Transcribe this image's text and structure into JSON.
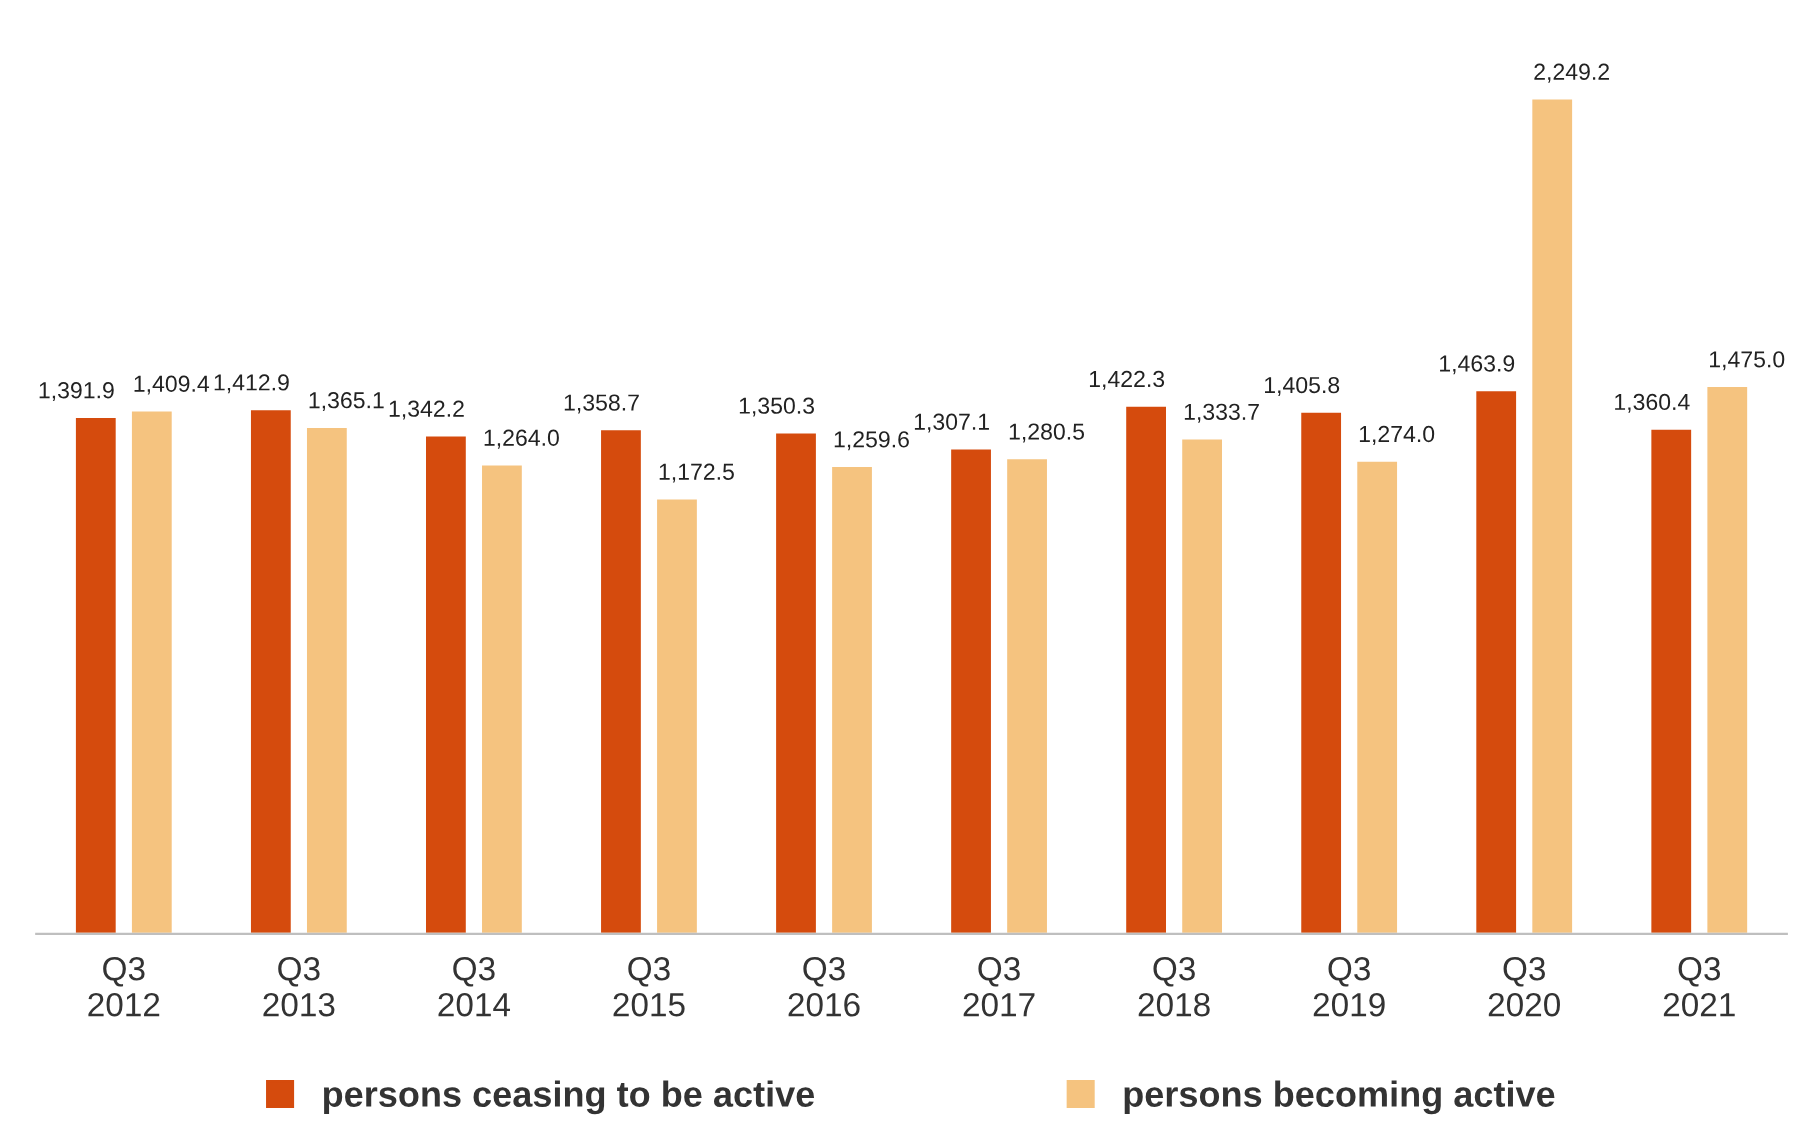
{
  "chart_data": {
    "type": "bar",
    "categories": [
      "Q3\n2012",
      "Q3\n2013",
      "Q3\n2014",
      "Q3\n2015",
      "Q3\n2016",
      "Q3\n2017",
      "Q3\n2018",
      "Q3\n2019",
      "Q3\n2020",
      "Q3\n2021"
    ],
    "series": [
      {
        "name": "persons ceasing to be active",
        "color": "#d54b0d",
        "values": [
          1391.9,
          1412.9,
          1342.2,
          1358.7,
          1350.3,
          1307.1,
          1422.3,
          1405.8,
          1463.9,
          1360.4
        ],
        "value_labels": [
          "1,391.9",
          "1,412.9",
          "1,342.2",
          "1,358.7",
          "1,350.3",
          "1,307.1",
          "1,422.3",
          "1,405.8",
          "1,463.9",
          "1,360.4"
        ]
      },
      {
        "name": "persons becoming active",
        "color": "#f5c37f",
        "values": [
          1409.4,
          1365.1,
          1264.0,
          1172.5,
          1259.6,
          1280.5,
          1333.7,
          1274.0,
          2249.2,
          1475.0
        ],
        "value_labels": [
          "1,409.4",
          "1,365.1",
          "1,264.0",
          "1,172.5",
          "1,259.6",
          "1,280.5",
          "1,333.7",
          "1,274.0",
          "2,249.2",
          "1,475.0"
        ]
      }
    ],
    "legend": "bottom",
    "grid": false,
    "tick_labels": "x"
  }
}
